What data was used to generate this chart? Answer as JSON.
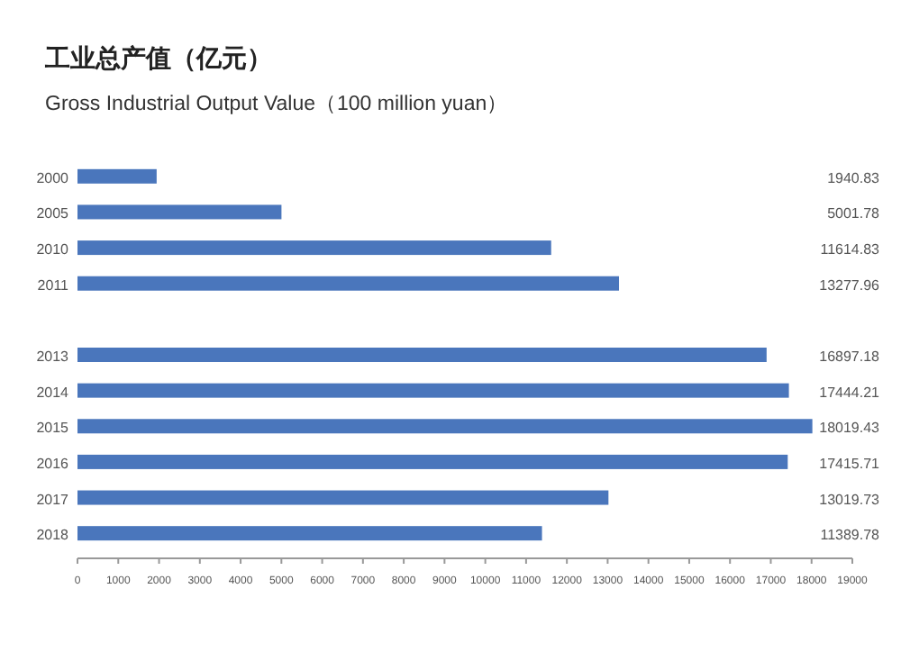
{
  "chart_data": {
    "type": "bar",
    "orientation": "horizontal",
    "title": "工业总产值（亿元）",
    "subtitle": "Gross Industrial Output Value（100 million yuan）",
    "categories": [
      "2000",
      "2005",
      "2010",
      "2011",
      null,
      "2013",
      "2014",
      "2015",
      "2016",
      "2017",
      "2018"
    ],
    "values": [
      1940.83,
      5001.78,
      11614.83,
      13277.96,
      null,
      16897.18,
      17444.21,
      18019.43,
      17415.71,
      13019.73,
      11389.78
    ],
    "color": "#4a76bc",
    "data_labels": true,
    "grid": false,
    "xlim": [
      0,
      19000
    ],
    "xticks": [
      0,
      1000,
      2000,
      3000,
      4000,
      5000,
      6000,
      7000,
      8000,
      9000,
      10000,
      11000,
      12000,
      13000,
      14000,
      15000,
      16000,
      17000,
      18000,
      19000
    ]
  }
}
